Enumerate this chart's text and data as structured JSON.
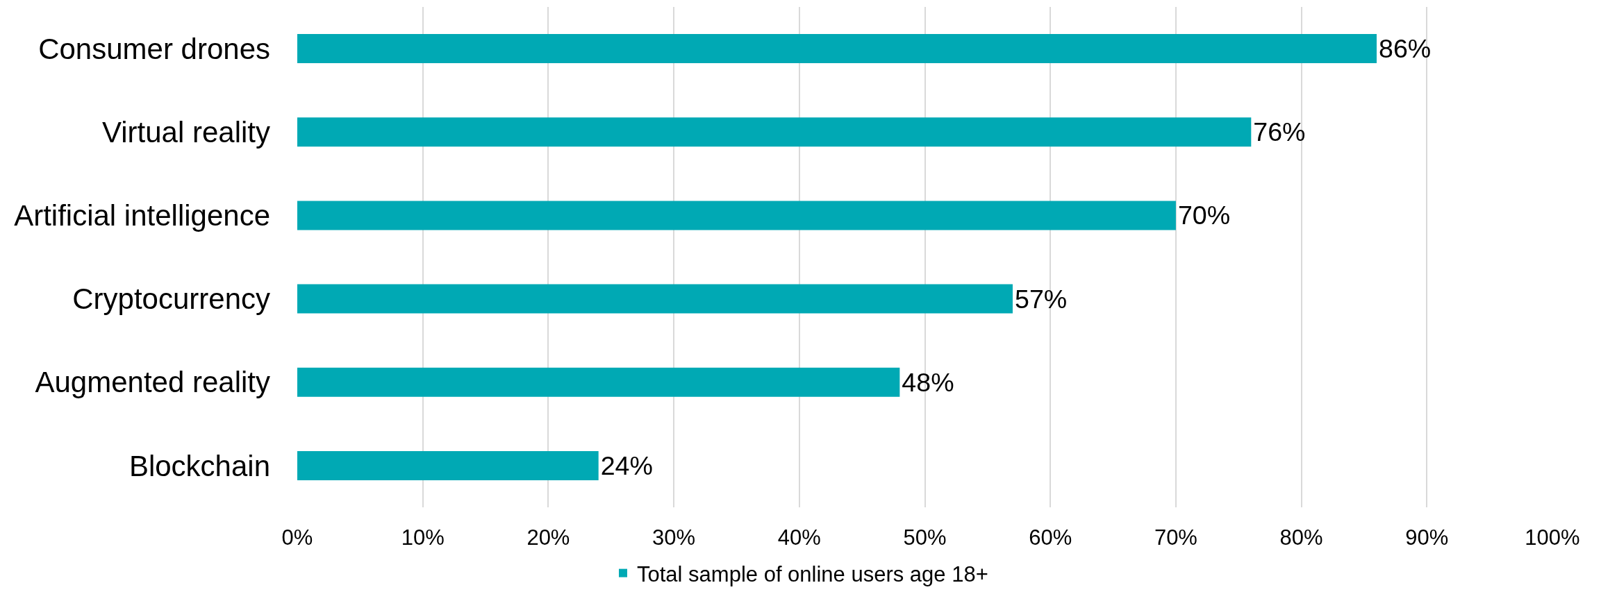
{
  "chart_data": {
    "type": "bar",
    "orientation": "horizontal",
    "categories": [
      "Consumer drones",
      "Virtual reality",
      "Artificial intelligence",
      "Cryptocurrency",
      "Augmented reality",
      "Blockchain"
    ],
    "series": [
      {
        "name": "Total sample of online users age 18+",
        "color": "#00a9b4",
        "values": [
          86,
          76,
          70,
          57,
          48,
          24
        ],
        "value_labels": [
          "86%",
          "76%",
          "70%",
          "57%",
          "48%",
          "24%"
        ]
      }
    ],
    "xlim": [
      0,
      100
    ],
    "xticks": [
      {
        "value": 0,
        "label": "0%"
      },
      {
        "value": 10,
        "label": "10%"
      },
      {
        "value": 20,
        "label": "20%"
      },
      {
        "value": 30,
        "label": "30%"
      },
      {
        "value": 40,
        "label": "40%"
      },
      {
        "value": 50,
        "label": "50%"
      },
      {
        "value": 60,
        "label": "60%"
      },
      {
        "value": 70,
        "label": "70%"
      },
      {
        "value": 80,
        "label": "80%"
      },
      {
        "value": 90,
        "label": "90%"
      },
      {
        "value": 100,
        "label": "100%"
      }
    ],
    "grid": "x",
    "legend": "bottom"
  }
}
